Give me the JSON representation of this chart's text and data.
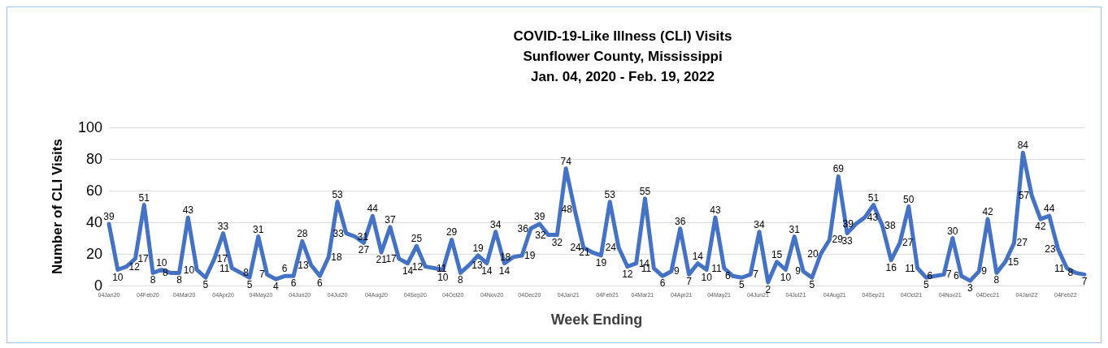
{
  "chart_data": {
    "type": "line",
    "title": "COVID-19-Like Illness (CLI) Visits",
    "subtitle": "Sunflower County, Mississippi\nJan. 04, 2020 - Feb. 19, 2022",
    "xlabel": "Week Ending",
    "ylabel": "Number of CLI Visits",
    "x": [
      "2020-01-04",
      "2020-01-11",
      "2020-01-18",
      "2020-01-25",
      "2020-02-01",
      "2020-02-08",
      "2020-02-15",
      "2020-02-22",
      "2020-02-29",
      "2020-03-07",
      "2020-03-14",
      "2020-03-21",
      "2020-03-28",
      "2020-04-04",
      "2020-04-11",
      "2020-04-18",
      "2020-04-25",
      "2020-05-02",
      "2020-05-09",
      "2020-05-16",
      "2020-05-23",
      "2020-05-30",
      "2020-06-06",
      "2020-06-13",
      "2020-06-20",
      "2020-06-27",
      "2020-07-04",
      "2020-07-11",
      "2020-07-18",
      "2020-07-25",
      "2020-08-01",
      "2020-08-08",
      "2020-08-15",
      "2020-08-22",
      "2020-08-29",
      "2020-09-05",
      "2020-09-12",
      "2020-09-19",
      "2020-09-26",
      "2020-10-03",
      "2020-10-10",
      "2020-10-17",
      "2020-10-24",
      "2020-10-31",
      "2020-11-07",
      "2020-11-14",
      "2020-11-21",
      "2020-11-28",
      "2020-12-05",
      "2020-12-12",
      "2020-12-19",
      "2020-12-26",
      "2021-01-02",
      "2021-01-09",
      "2021-01-16",
      "2021-01-23",
      "2021-01-30",
      "2021-02-06",
      "2021-02-13",
      "2021-02-20",
      "2021-02-27",
      "2021-03-06",
      "2021-03-13",
      "2021-03-20",
      "2021-03-27",
      "2021-04-03",
      "2021-04-10",
      "2021-04-17",
      "2021-04-24",
      "2021-05-01",
      "2021-05-08",
      "2021-05-15",
      "2021-05-22",
      "2021-05-29",
      "2021-06-05",
      "2021-06-12",
      "2021-06-19",
      "2021-06-26",
      "2021-07-03",
      "2021-07-10",
      "2021-07-17",
      "2021-07-24",
      "2021-07-31",
      "2021-08-07",
      "2021-08-14",
      "2021-08-21",
      "2021-08-28",
      "2021-09-04",
      "2021-09-11",
      "2021-09-18",
      "2021-09-25",
      "2021-10-02",
      "2021-10-09",
      "2021-10-16",
      "2021-10-23",
      "2021-10-30",
      "2021-11-06",
      "2021-11-13",
      "2021-11-20",
      "2021-11-27",
      "2021-12-04",
      "2021-12-11",
      "2021-12-18",
      "2021-12-25",
      "2022-01-01",
      "2022-01-08",
      "2022-01-15",
      "2022-01-22",
      "2022-01-29",
      "2022-02-05",
      "2022-02-12",
      "2022-02-19"
    ],
    "series": [
      {
        "color": "#4472c4",
        "values": [
          39,
          10,
          12,
          17,
          51,
          8,
          10,
          8,
          8,
          43,
          10,
          5,
          17,
          33,
          11,
          8,
          5,
          31,
          7,
          4,
          6,
          6,
          28,
          13,
          6,
          18,
          53,
          33,
          31,
          27,
          44,
          21,
          37,
          17,
          14,
          25,
          12,
          11,
          10,
          29,
          8,
          13,
          19,
          14,
          34,
          14,
          18,
          19,
          36,
          39,
          32,
          32,
          74,
          48,
          24,
          21,
          19,
          53,
          24,
          12,
          14,
          55,
          11,
          6,
          9,
          36,
          7,
          14,
          10,
          43,
          11,
          6,
          5,
          7,
          34,
          2,
          15,
          10,
          31,
          9,
          5,
          20,
          29,
          69,
          33,
          39,
          43,
          51,
          38,
          16,
          27,
          50,
          11,
          5,
          6,
          7,
          30,
          6,
          3,
          9,
          42,
          8,
          15,
          27,
          84,
          57,
          42,
          44,
          23,
          11,
          8,
          7
        ]
      }
    ],
    "xlim": [
      "2020-01-04",
      "2022-02-19"
    ],
    "xticks": [
      {
        "value": "2020-01-04",
        "label": "04Jan20"
      },
      {
        "value": "2020-02-04",
        "label": "04Feb20"
      },
      {
        "value": "2020-03-04",
        "label": "04Mar20"
      },
      {
        "value": "2020-04-04",
        "label": "04Apr20"
      },
      {
        "value": "2020-05-04",
        "label": "04May20"
      },
      {
        "value": "2020-06-04",
        "label": "04Jun20"
      },
      {
        "value": "2020-07-04",
        "label": "04Jul20"
      },
      {
        "value": "2020-08-04",
        "label": "04Aug20"
      },
      {
        "value": "2020-09-04",
        "label": "04Sep20"
      },
      {
        "value": "2020-10-04",
        "label": "04Oct20"
      },
      {
        "value": "2020-11-04",
        "label": "04Nov20"
      },
      {
        "value": "2020-12-04",
        "label": "04Dec20"
      },
      {
        "value": "2021-01-04",
        "label": "04Jan21"
      },
      {
        "value": "2021-02-04",
        "label": "04Feb21"
      },
      {
        "value": "2021-03-04",
        "label": "04Mar21"
      },
      {
        "value": "2021-04-04",
        "label": "04Apr21"
      },
      {
        "value": "2021-05-04",
        "label": "04May21"
      },
      {
        "value": "2021-06-04",
        "label": "04Jun21"
      },
      {
        "value": "2021-07-04",
        "label": "04Jul21"
      },
      {
        "value": "2021-08-04",
        "label": "04Aug21"
      },
      {
        "value": "2021-09-04",
        "label": "04Sep21"
      },
      {
        "value": "2021-10-04",
        "label": "04Oct21"
      },
      {
        "value": "2021-11-04",
        "label": "04Nov21"
      },
      {
        "value": "2021-12-04",
        "label": "04Dec21"
      },
      {
        "value": "2022-01-04",
        "label": "04Jan22"
      },
      {
        "value": "2022-02-04",
        "label": "04Feb22"
      }
    ],
    "ylim": [
      0,
      100
    ],
    "yticks": [
      0,
      20,
      40,
      60,
      80,
      100
    ],
    "grid": "y",
    "data_labels": true,
    "marker": "none",
    "line_style": "solid"
  }
}
